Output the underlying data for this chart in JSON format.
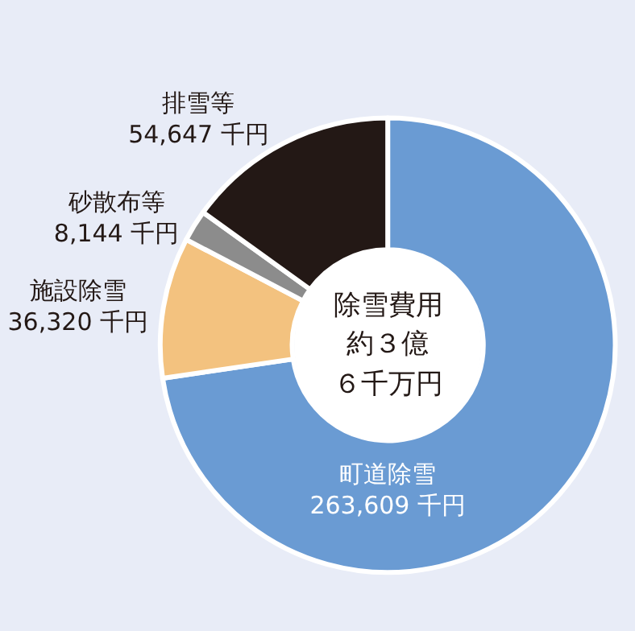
{
  "chart_data": {
    "type": "donut",
    "categories": [
      "町道除雪",
      "施設除雪",
      "砂散布等",
      "排雪等"
    ],
    "values": [
      263609,
      36320,
      8144,
      54647
    ],
    "value_labels": [
      "263,609 千円",
      "36,320 千円",
      "8,144 千円",
      "54,647 千円"
    ],
    "colors": [
      "#6a9bd3",
      "#f3c27f",
      "#8c8c8c",
      "#231815"
    ],
    "annotations": [
      "除雪費用",
      "約３億",
      "６千万円"
    ]
  }
}
